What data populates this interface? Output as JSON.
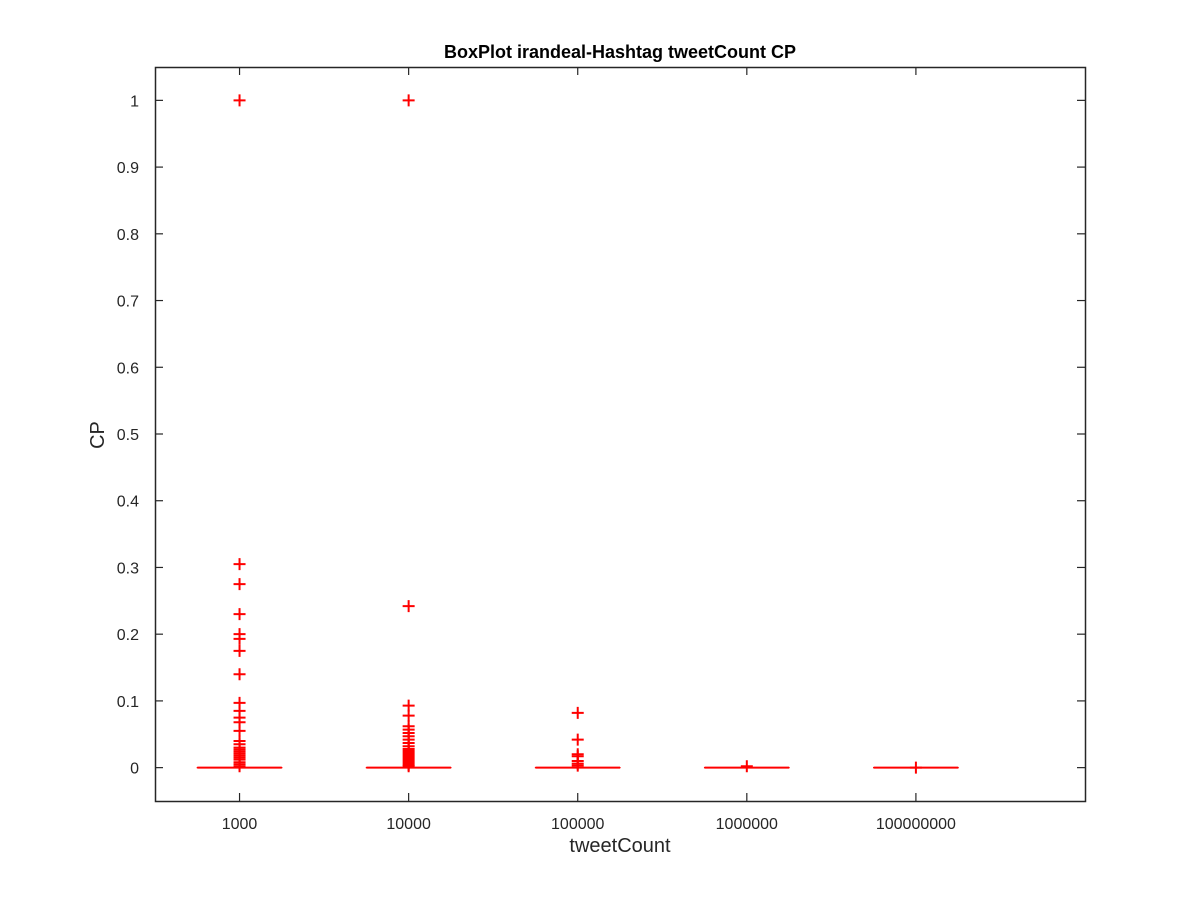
{
  "chart_data": {
    "type": "box",
    "title": "BoxPlot irandeal-Hashtag tweetCount CP",
    "xlabel": "tweetCount",
    "ylabel": "CP",
    "categories": [
      "1000",
      "10000",
      "100000",
      "1000000",
      "100000000"
    ],
    "ylim": [
      -0.05,
      1.05
    ],
    "yticks": [
      0,
      0.1,
      0.2,
      0.3,
      0.4,
      0.5,
      0.6,
      0.7,
      0.8,
      0.9,
      1
    ],
    "ytick_labels": [
      "0",
      "0.1",
      "0.2",
      "0.3",
      "0.4",
      "0.5",
      "0.6",
      "0.7",
      "0.8",
      "0.9",
      "1"
    ],
    "grid": false,
    "colors": {
      "box": "#ff0000",
      "outlier": "#ff0000",
      "axis": "#262626"
    },
    "boxes": [
      {
        "category": "1000",
        "median": 0,
        "q1": 0,
        "q3": 0,
        "whisker_low": 0,
        "whisker_high": 0,
        "outliers": [
          1.0,
          0.305,
          0.275,
          0.23,
          0.2,
          0.193,
          0.175,
          0.14,
          0.097,
          0.085,
          0.075,
          0.068,
          0.055,
          0.04,
          0.035,
          0.03,
          0.027,
          0.024,
          0.021,
          0.018,
          0.015,
          0.012,
          0.008,
          0.005,
          0.002
        ]
      },
      {
        "category": "10000",
        "median": 0,
        "q1": 0,
        "q3": 0,
        "whisker_low": 0,
        "whisker_high": 0,
        "outliers": [
          1.0,
          0.242,
          0.093,
          0.078,
          0.062,
          0.057,
          0.052,
          0.047,
          0.042,
          0.037,
          0.032,
          0.028,
          0.025,
          0.022,
          0.019,
          0.016,
          0.013,
          0.01,
          0.007,
          0.004,
          0.002
        ]
      },
      {
        "category": "100000",
        "median": 0,
        "q1": 0,
        "q3": 0,
        "whisker_low": 0,
        "whisker_high": 0,
        "outliers": [
          0.082,
          0.042,
          0.02,
          0.017,
          0.01,
          0.006,
          0.003
        ]
      },
      {
        "category": "1000000",
        "median": 0,
        "q1": 0,
        "q3": 0,
        "whisker_low": 0,
        "whisker_high": 0,
        "outliers": [
          0.002
        ]
      },
      {
        "category": "100000000",
        "median": 0,
        "q1": 0,
        "q3": 0,
        "whisker_low": 0,
        "whisker_high": 0,
        "outliers": [
          0.0
        ]
      }
    ]
  }
}
